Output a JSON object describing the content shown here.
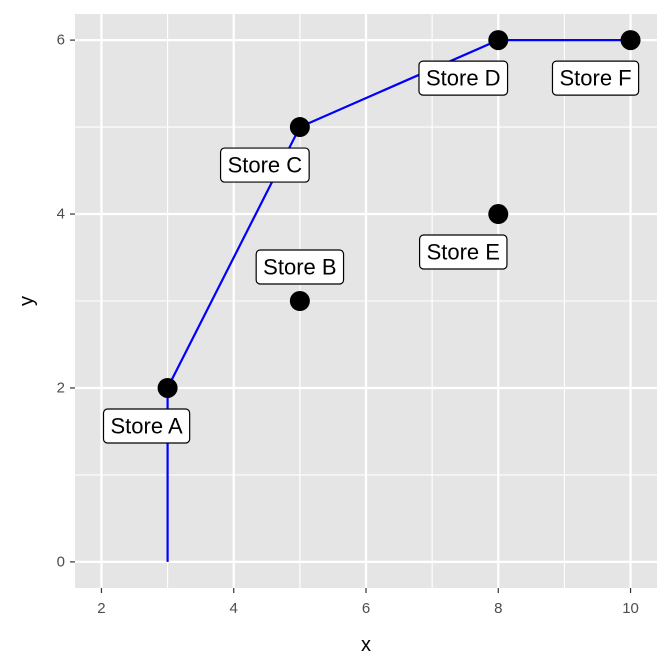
{
  "chart_data": {
    "type": "scatter",
    "title": "",
    "xlabel": "x",
    "ylabel": "y",
    "xlim": [
      1.6,
      10.4
    ],
    "ylim": [
      -0.3,
      6.3
    ],
    "x_ticks": [
      2,
      4,
      6,
      8,
      10
    ],
    "y_ticks": [
      0,
      2,
      4,
      6
    ],
    "grid": true,
    "legend": "none",
    "points": [
      {
        "label": "Store A",
        "x": 3,
        "y": 2,
        "label_pos": "below"
      },
      {
        "label": "Store B",
        "x": 5,
        "y": 3,
        "label_pos": "above"
      },
      {
        "label": "Store C",
        "x": 5,
        "y": 5,
        "label_pos": "below-left"
      },
      {
        "label": "Store D",
        "x": 8,
        "y": 6,
        "label_pos": "below-left"
      },
      {
        "label": "Store E",
        "x": 8,
        "y": 4,
        "label_pos": "below-left"
      },
      {
        "label": "Store F",
        "x": 10,
        "y": 6,
        "label_pos": "below-left"
      }
    ],
    "line": {
      "color": "#0000ff",
      "x": [
        3,
        3,
        5,
        8,
        10
      ],
      "y": [
        0,
        2,
        5,
        6,
        6
      ]
    },
    "colors": {
      "panel": "#e5e5e5",
      "grid": "#ffffff",
      "point": "#000000",
      "line": "#0000ff"
    }
  }
}
